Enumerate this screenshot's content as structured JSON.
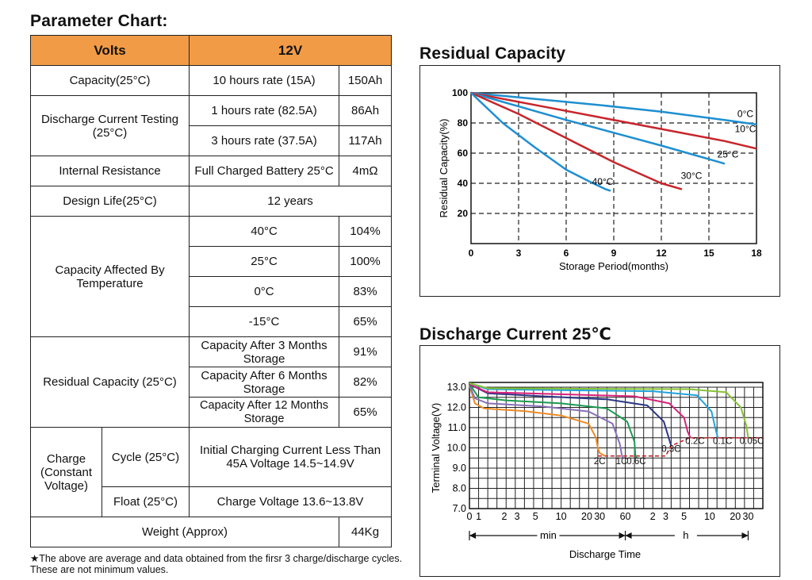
{
  "titles": {
    "param": "Parameter Chart:",
    "residual": "Residual Capacity",
    "discharge": "Discharge Current 25℃"
  },
  "table": {
    "header": {
      "label": "Volts",
      "value": "12V"
    },
    "capacity": {
      "label": "Capacity(25°C)",
      "rate": "10 hours rate (15A)",
      "value": "150Ah"
    },
    "discharge": {
      "label": "Discharge Current Testing (25°C)",
      "rows": [
        {
          "rate": "1 hours rate (82.5A)",
          "value": "86Ah"
        },
        {
          "rate": "3 hours rate (37.5A)",
          "value": "117Ah"
        }
      ]
    },
    "resistance": {
      "label": "Internal Resistance",
      "cond": "Full Charged Battery 25°C",
      "value": "4mΩ"
    },
    "design": {
      "label": "Design Life(25°C)",
      "value": "12 years"
    },
    "temperature": {
      "label": "Capacity Affected By Temperature",
      "rows": [
        {
          "t": "40°C",
          "v": "104%"
        },
        {
          "t": "25°C",
          "v": "100%"
        },
        {
          "t": "0°C",
          "v": "83%"
        },
        {
          "t": "-15°C",
          "v": "65%"
        }
      ]
    },
    "residual": {
      "label": "Residual Capacity (25°C)",
      "rows": [
        {
          "t": "Capacity After 3 Months Storage",
          "v": "91%"
        },
        {
          "t": "Capacity After 6 Months Storage",
          "v": "82%"
        },
        {
          "t": "Capacity After 12 Months Storage",
          "v": "65%"
        }
      ]
    },
    "charge": {
      "label": "Charge (Constant Voltage)",
      "cycle_label": "Cycle (25°C)",
      "cycle_value": "Initial Charging Current Less Than 45A Voltage 14.5~14.9V",
      "float_label": "Float (25°C)",
      "float_value": "Charge Voltage 13.6~13.8V"
    },
    "weight": {
      "label": "Weight (Approx)",
      "value": "44Kg"
    }
  },
  "note": "★The above are average and data obtained from the firsr 3 charge/discharge cycles. These are not minimum values.",
  "chart_data": [
    {
      "type": "line",
      "title": "Residual Capacity",
      "xlabel": "Storage Period(months)",
      "ylabel": "Residual Capacity(%)",
      "xlim": [
        0,
        18
      ],
      "ylim": [
        0,
        100
      ],
      "xticks": [
        0,
        3,
        6,
        9,
        12,
        15,
        18
      ],
      "yticks": [
        20,
        40,
        60,
        80,
        100
      ],
      "grid": true,
      "series": [
        {
          "name": "0°C",
          "color": "#1e8fd0",
          "label_at": [
            17.3,
            84
          ],
          "points": [
            [
              0,
              100
            ],
            [
              4,
              96
            ],
            [
              8,
              92
            ],
            [
              12,
              87.5
            ],
            [
              16,
              82
            ],
            [
              18,
              79
            ]
          ]
        },
        {
          "name": "10°C",
          "color": "#c8252b",
          "label_at": [
            17.3,
            74
          ],
          "points": [
            [
              0,
              100
            ],
            [
              4,
              92
            ],
            [
              8,
              84
            ],
            [
              12,
              76
            ],
            [
              16,
              68
            ],
            [
              18,
              63
            ]
          ]
        },
        {
          "name": "25°C",
          "color": "#1e8fd0",
          "label_at": [
            16.2,
            57
          ],
          "points": [
            [
              0,
              100
            ],
            [
              3,
              91
            ],
            [
              6,
              82
            ],
            [
              9,
              73.5
            ],
            [
              12,
              65
            ],
            [
              15,
              56
            ],
            [
              16,
              53
            ]
          ]
        },
        {
          "name": "30°C",
          "color": "#c8252b",
          "label_at": [
            13.9,
            43
          ],
          "points": [
            [
              0,
              100
            ],
            [
              3,
              86
            ],
            [
              6,
              70
            ],
            [
              9,
              54
            ],
            [
              12,
              40
            ],
            [
              13.3,
              36
            ]
          ]
        },
        {
          "name": "40°C",
          "color": "#1e8fd0",
          "label_at": [
            8.3,
            39
          ],
          "points": [
            [
              0,
              100
            ],
            [
              2,
              80
            ],
            [
              4,
              64
            ],
            [
              6,
              49
            ],
            [
              7.5,
              41
            ],
            [
              8.5,
              36
            ],
            [
              8.8,
              35
            ]
          ]
        }
      ]
    },
    {
      "type": "line",
      "title": "Discharge Current 25℃",
      "xlabel": "Discharge Time",
      "ylabel": "Terminal Voltage(V)",
      "ylim": [
        7.0,
        13.0
      ],
      "yticks": [
        "7.0",
        "8.0",
        "9.0",
        "10.0",
        "11.0",
        "12.0",
        "13.0"
      ],
      "xtick_labels": [
        "0",
        "1",
        "2",
        "3",
        "5",
        "10",
        "20",
        "30",
        "60",
        "2",
        "3",
        "5",
        "10",
        "20",
        "30"
      ],
      "unit_labels": [
        "min",
        "h"
      ],
      "grid": true,
      "series": [
        {
          "name": "2C",
          "color": "#ee8a25",
          "points": [
            [
              0,
              13.1
            ],
            [
              0.3,
              12.2
            ],
            [
              0.8,
              11.95
            ],
            [
              3,
              11.82
            ],
            [
              5,
              11.6
            ],
            [
              6.5,
              11.2
            ],
            [
              6.9,
              10.5
            ],
            [
              7.0,
              10.0
            ],
            [
              7.1,
              9.75
            ],
            [
              7.4,
              9.6
            ]
          ]
        },
        {
          "name": "1C",
          "color": "#8870b8",
          "points": [
            [
              0,
              13.1
            ],
            [
              0.3,
              12.45
            ],
            [
              1,
              12.2
            ],
            [
              4,
              12.05
            ],
            [
              6.5,
              11.8
            ],
            [
              7.8,
              11.2
            ],
            [
              8.2,
              10.2
            ],
            [
              8.3,
              9.7
            ],
            [
              8.35,
              9.5
            ]
          ]
        },
        {
          "name": "0.6C",
          "color": "#1a9a50",
          "points": [
            [
              0,
              13.15
            ],
            [
              0.5,
              12.5
            ],
            [
              2,
              12.35
            ],
            [
              5,
              12.2
            ],
            [
              7.5,
              11.95
            ],
            [
              8.6,
              11.3
            ],
            [
              9.0,
              10.3
            ],
            [
              9.05,
              9.6
            ],
            [
              9.1,
              9.5
            ]
          ]
        },
        {
          "name": "0.3C",
          "color": "#2d3784",
          "points": [
            [
              0,
              13.15
            ],
            [
              1,
              12.7
            ],
            [
              4,
              12.55
            ],
            [
              7.5,
              12.4
            ],
            [
              9.7,
              12.1
            ],
            [
              10.6,
              11.3
            ],
            [
              10.9,
              10.4
            ],
            [
              11.0,
              10.1
            ]
          ]
        },
        {
          "name": "0.2C",
          "color": "#d8237c",
          "points": [
            [
              0,
              13.15
            ],
            [
              1,
              12.75
            ],
            [
              5,
              12.65
            ],
            [
              9,
              12.55
            ],
            [
              10.9,
              12.2
            ],
            [
              11.7,
              11.5
            ],
            [
              11.9,
              10.8
            ],
            [
              12.05,
              10.5
            ]
          ]
        },
        {
          "name": "0.1C",
          "color": "#22a4dc",
          "points": [
            [
              0,
              13.2
            ],
            [
              1,
              12.9
            ],
            [
              5,
              12.85
            ],
            [
              10,
              12.8
            ],
            [
              12.4,
              12.6
            ],
            [
              13.2,
              11.8
            ],
            [
              13.4,
              11.0
            ],
            [
              13.55,
              10.5
            ]
          ]
        },
        {
          "name": "0.05C",
          "color": "#86c235",
          "points": [
            [
              0,
              13.2
            ],
            [
              1,
              12.95
            ],
            [
              6,
              12.92
            ],
            [
              12,
              12.9
            ],
            [
              14,
              12.75
            ],
            [
              14.8,
              12.0
            ],
            [
              15.1,
              11.1
            ],
            [
              15.2,
              10.5
            ]
          ]
        }
      ],
      "cutoff": {
        "color": "#c8252b",
        "points": [
          [
            7.0,
            9.6
          ],
          [
            7.4,
            9.6
          ],
          [
            9.5,
            9.6
          ],
          [
            10.7,
            9.6
          ],
          [
            11.0,
            10.1
          ],
          [
            12.0,
            10.5
          ],
          [
            16,
            10.5
          ]
        ]
      }
    }
  ]
}
